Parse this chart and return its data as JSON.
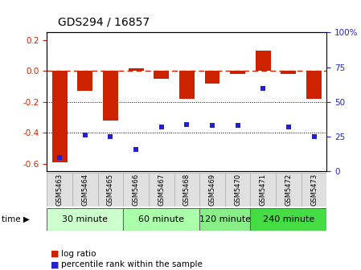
{
  "title": "GDS294 / 16857",
  "samples": [
    "GSM5463",
    "GSM5464",
    "GSM5465",
    "GSM5466",
    "GSM5467",
    "GSM5468",
    "GSM5469",
    "GSM5470",
    "GSM5471",
    "GSM5472",
    "GSM5473"
  ],
  "log_ratio": [
    -0.59,
    -0.13,
    -0.32,
    0.02,
    -0.05,
    -0.18,
    -0.08,
    -0.02,
    0.13,
    -0.02,
    -0.18
  ],
  "percentile": [
    10,
    26,
    25,
    16,
    32,
    34,
    33,
    33,
    60,
    32,
    25
  ],
  "groups": [
    {
      "label": "30 minute",
      "start": 0,
      "end": 3,
      "color": "#ccffcc"
    },
    {
      "label": "60 minute",
      "start": 3,
      "end": 6,
      "color": "#aaffaa"
    },
    {
      "label": "120 minute",
      "start": 6,
      "end": 8,
      "color": "#88ee88"
    },
    {
      "label": "240 minute",
      "start": 8,
      "end": 11,
      "color": "#44dd44"
    }
  ],
  "bar_color": "#cc2200",
  "dot_color": "#2222cc",
  "ylim_left": [
    -0.65,
    0.25
  ],
  "ylim_right": [
    0,
    100
  ],
  "yticks_left": [
    -0.6,
    -0.4,
    -0.2,
    0.0,
    0.2
  ],
  "yticks_right": [
    0,
    25,
    50,
    75,
    100
  ],
  "dotted_lines": [
    -0.2,
    -0.4
  ],
  "background_color": "#ffffff",
  "title_fontsize": 10,
  "tick_fontsize": 7.5,
  "sample_fontsize": 6,
  "group_fontsize": 8
}
